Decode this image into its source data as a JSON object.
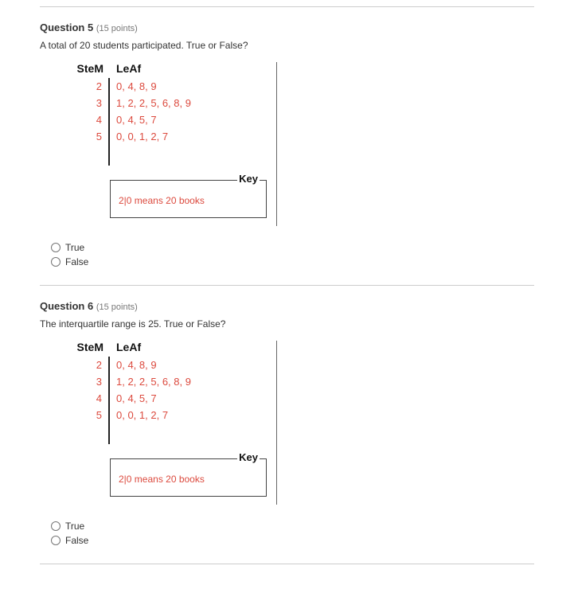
{
  "q5": {
    "title": "Question 5",
    "points": "(15 points)",
    "prompt": "A total of 20 students participated.  True or False?",
    "options": {
      "true": "True",
      "false": "False"
    }
  },
  "q6": {
    "title": "Question 6",
    "points": "(15 points)",
    "prompt": "The interquartile range is 25.  True or False?",
    "options": {
      "true": "True",
      "false": "False"
    }
  },
  "stemleaf": {
    "header": {
      "stem": "SteM",
      "leaf": "LeAf"
    },
    "stems": {
      "r0": "2",
      "r1": "3",
      "r2": "4",
      "r3": "5"
    },
    "leaves": {
      "r0": "0, 4, 8, 9",
      "r1": "1, 2, 2, 5, 6, 8, 9",
      "r2": "0, 4, 5, 7",
      "r3": "0, 0, 1, 2, 7"
    },
    "key": {
      "label": "Key",
      "text": "2|0 means 20 books"
    }
  },
  "styling": {
    "data_color": "#dc4a3e",
    "border_color": "#666",
    "text_color": "#333",
    "background": "#ffffff"
  }
}
